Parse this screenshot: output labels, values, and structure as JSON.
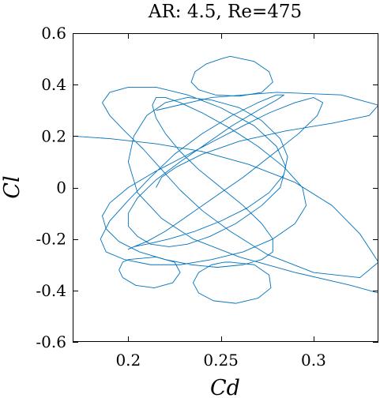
{
  "chart_data": {
    "type": "line",
    "title": "AR: 4.5, Re=475",
    "xlabel": "Cd",
    "ylabel": "Cl",
    "xlim": [
      0.17,
      0.335
    ],
    "ylim": [
      -0.6,
      0.6
    ],
    "xticks": [
      0.2,
      0.25,
      0.3
    ],
    "xtick_labels": [
      "0.2",
      "0.25",
      "0.3"
    ],
    "yticks": [
      -0.6,
      -0.4,
      -0.2,
      0,
      0.2,
      0.4,
      0.6
    ],
    "ytick_labels": [
      "-0.6",
      "-0.4",
      "-0.2",
      "0",
      "0.2",
      "0.4",
      "0.6"
    ],
    "grid": false,
    "legend": "none",
    "color": "#0072BD",
    "series": [
      {
        "x": [
          0.17,
          0.19,
          0.215,
          0.24,
          0.265,
          0.29,
          0.31,
          0.325,
          0.335,
          0.325,
          0.3,
          0.275,
          0.255,
          0.24,
          0.228,
          0.218,
          0.208,
          0.198,
          0.19,
          0.186,
          0.19,
          0.2,
          0.215,
          0.232,
          0.25,
          0.268,
          0.28,
          0.285,
          0.282,
          0.272,
          0.258,
          0.244,
          0.232,
          0.222,
          0.212,
          0.205,
          0.2,
          0.2,
          0.205,
          0.215,
          0.228,
          0.242,
          0.256,
          0.27,
          0.28,
          0.284,
          0.28,
          0.27,
          0.256,
          0.24,
          0.225,
          0.212,
          0.2,
          0.19,
          0.185,
          0.188,
          0.198,
          0.212,
          0.228,
          0.245,
          0.262,
          0.278,
          0.29,
          0.296,
          0.294,
          0.284,
          0.27,
          0.255,
          0.24,
          0.228,
          0.22,
          0.215,
          0.213,
          0.215,
          0.22,
          0.228,
          0.238,
          0.25,
          0.262,
          0.272,
          0.278,
          0.278,
          0.272,
          0.262,
          0.248,
          0.234,
          0.22,
          0.206,
          0.195,
          0.188,
          0.186,
          0.19,
          0.2,
          0.214,
          0.23,
          0.246,
          0.262,
          0.276,
          0.29,
          0.3,
          0.305,
          0.302,
          0.292,
          0.278,
          0.262,
          0.246,
          0.232,
          0.22,
          0.21,
          0.203,
          0.2,
          0.203,
          0.21,
          0.222,
          0.236,
          0.25,
          0.264,
          0.276,
          0.284,
          0.286,
          0.282,
          0.272,
          0.26,
          0.245,
          0.232,
          0.22,
          0.21,
          0.203,
          0.2,
          0.205,
          0.218,
          0.235,
          0.26,
          0.29,
          0.32,
          0.335
        ],
        "y": [
          0.2,
          0.19,
          0.17,
          0.14,
          0.09,
          0.02,
          -0.07,
          -0.18,
          -0.29,
          -0.35,
          -0.33,
          -0.26,
          -0.17,
          -0.09,
          -0.01,
          0.07,
          0.15,
          0.22,
          0.28,
          0.33,
          0.37,
          0.39,
          0.39,
          0.36,
          0.31,
          0.24,
          0.16,
          0.08,
          0.0,
          -0.07,
          -0.14,
          -0.19,
          -0.22,
          -0.23,
          -0.22,
          -0.19,
          -0.15,
          -0.1,
          -0.04,
          0.03,
          0.1,
          0.17,
          0.24,
          0.3,
          0.34,
          0.36,
          0.36,
          0.33,
          0.28,
          0.21,
          0.13,
          0.04,
          -0.05,
          -0.13,
          -0.2,
          -0.25,
          -0.28,
          -0.3,
          -0.3,
          -0.28,
          -0.25,
          -0.2,
          -0.14,
          -0.07,
          0.0,
          0.08,
          0.16,
          0.23,
          0.29,
          0.33,
          0.35,
          0.35,
          0.32,
          0.27,
          0.21,
          0.14,
          0.07,
          0.0,
          -0.07,
          -0.14,
          -0.2,
          -0.25,
          -0.28,
          -0.3,
          -0.31,
          -0.3,
          -0.28,
          -0.25,
          -0.21,
          -0.16,
          -0.11,
          -0.06,
          0.0,
          0.06,
          0.12,
          0.18,
          0.24,
          0.29,
          0.33,
          0.35,
          0.33,
          0.28,
          0.21,
          0.13,
          0.04,
          -0.04,
          -0.11,
          -0.17,
          -0.21,
          -0.23,
          -0.24,
          -0.23,
          -0.22,
          -0.2,
          -0.17,
          -0.13,
          -0.08,
          -0.02,
          0.05,
          0.12,
          0.19,
          0.26,
          0.31,
          0.34,
          0.35,
          0.33,
          0.28,
          0.2,
          0.1,
          -0.02,
          -0.12,
          -0.2,
          -0.27,
          -0.33,
          -0.38,
          -0.41
        ]
      },
      {
        "x": [
          0.255,
          0.268,
          0.276,
          0.278,
          0.272,
          0.26,
          0.247,
          0.238,
          0.234,
          0.236,
          0.242,
          0.25,
          0.255
        ],
        "y": [
          0.51,
          0.49,
          0.45,
          0.41,
          0.37,
          0.355,
          0.36,
          0.38,
          0.41,
          0.45,
          0.48,
          0.5,
          0.51
        ]
      },
      {
        "x": [
          0.255,
          0.268,
          0.276,
          0.277,
          0.27,
          0.258,
          0.246,
          0.238,
          0.235,
          0.238,
          0.245,
          0.252,
          0.255
        ],
        "y": [
          -0.29,
          -0.3,
          -0.34,
          -0.39,
          -0.43,
          -0.45,
          -0.44,
          -0.41,
          -0.37,
          -0.33,
          -0.3,
          -0.29,
          -0.29
        ]
      },
      {
        "x": [
          0.2,
          0.215,
          0.225,
          0.228,
          0.224,
          0.214,
          0.204,
          0.197,
          0.195,
          0.197,
          0.2
        ],
        "y": [
          -0.28,
          -0.27,
          -0.29,
          -0.33,
          -0.37,
          -0.39,
          -0.38,
          -0.35,
          -0.32,
          -0.29,
          -0.28
        ]
      },
      {
        "x": [
          0.215,
          0.245,
          0.28,
          0.315,
          0.335,
          0.33,
          0.31,
          0.285,
          0.26,
          0.24,
          0.226,
          0.218,
          0.215
        ],
        "y": [
          0.3,
          0.35,
          0.37,
          0.36,
          0.32,
          0.28,
          0.25,
          0.22,
          0.18,
          0.13,
          0.08,
          0.04,
          0.0
        ]
      }
    ]
  }
}
